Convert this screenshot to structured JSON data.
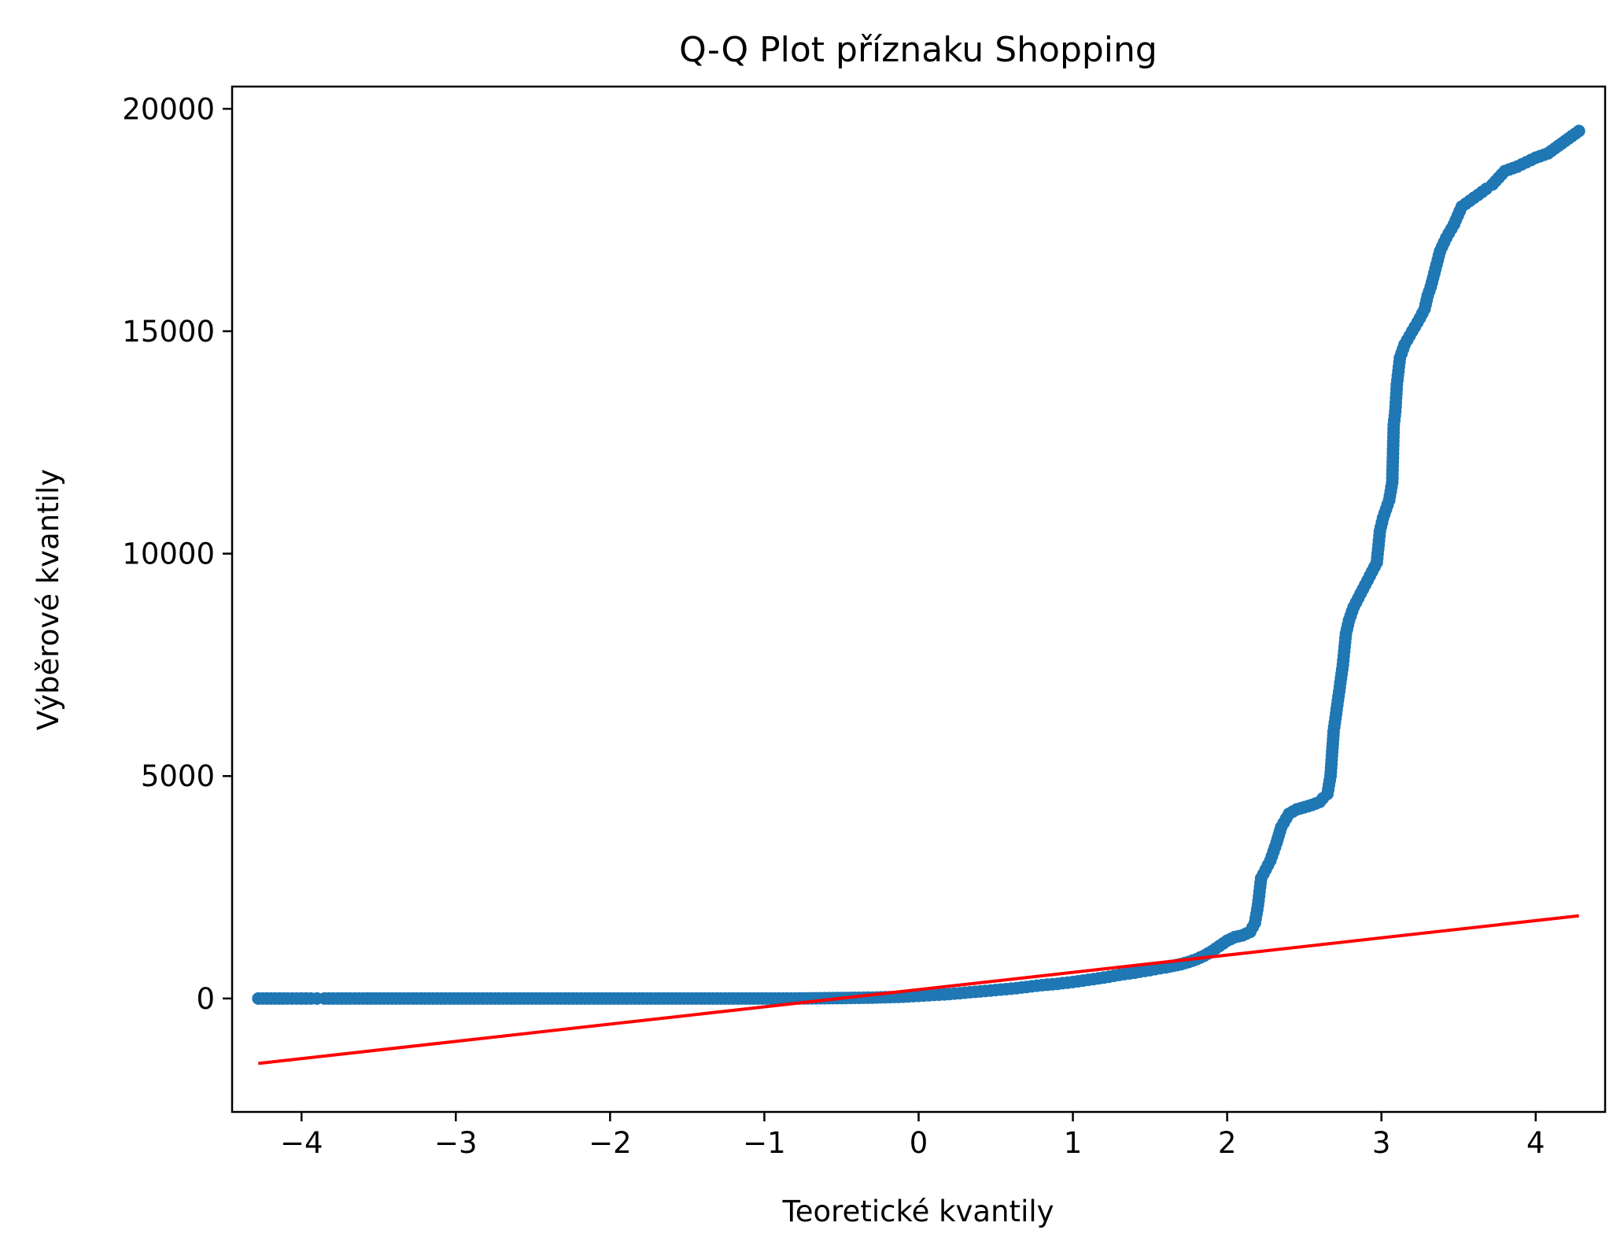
{
  "chart_data": {
    "type": "scatter",
    "title": "Q-Q Plot příznaku Shopping",
    "xlabel": "Teoretické kvantily",
    "ylabel": "Výběrové kvantily",
    "xlim": [
      -4.45,
      4.45
    ],
    "ylim": [
      -2550,
      20500
    ],
    "x_ticks": [
      -4,
      -3,
      -2,
      -1,
      0,
      1,
      2,
      3,
      4
    ],
    "x_tick_labels": [
      "−4",
      "−3",
      "−2",
      "−1",
      "0",
      "1",
      "2",
      "3",
      "4"
    ],
    "y_ticks": [
      0,
      5000,
      10000,
      15000,
      20000
    ],
    "y_tick_labels": [
      "0",
      "5000",
      "10000",
      "15000",
      "20000"
    ],
    "grid": false,
    "series": [
      {
        "kind": "points",
        "color": "#1f77b4",
        "x": [
          -4.28,
          -4.09,
          -4.0,
          -3.94,
          -3.9,
          -3.85,
          -3.6,
          -3.2,
          -2.8,
          -2.4,
          -2.0,
          -1.6,
          -1.2,
          -0.8,
          -0.5,
          -0.3,
          -0.1,
          0.0,
          0.1,
          0.2,
          0.3,
          0.4,
          0.5,
          0.6,
          0.7,
          0.8,
          0.9,
          1.0,
          1.1,
          1.2,
          1.3,
          1.4,
          1.5,
          1.6,
          1.7,
          1.75,
          1.8,
          1.85,
          1.9,
          1.95,
          2.0,
          2.05,
          2.1,
          2.15,
          2.18,
          2.2,
          2.22,
          2.25,
          2.28,
          2.3,
          2.32,
          2.35,
          2.4,
          2.45,
          2.5,
          2.55,
          2.6,
          2.62,
          2.65,
          2.67,
          2.69,
          2.71,
          2.73,
          2.75,
          2.77,
          2.79,
          2.82,
          2.85,
          2.88,
          2.91,
          2.94,
          2.97,
          2.99,
          3.01,
          3.03,
          3.05,
          3.06,
          3.07,
          3.08,
          3.09,
          3.1,
          3.12,
          3.15,
          3.2,
          3.25,
          3.28,
          3.3,
          3.32,
          3.35,
          3.38,
          3.42,
          3.47,
          3.52,
          3.6,
          3.68,
          3.72,
          3.8,
          3.88,
          3.94,
          4.0,
          4.08,
          4.28
        ],
        "y": [
          0,
          0,
          0,
          0,
          0,
          0,
          0,
          0,
          0,
          0,
          0,
          0,
          0,
          0,
          10,
          20,
          40,
          60,
          80,
          100,
          130,
          160,
          190,
          220,
          260,
          300,
          330,
          370,
          420,
          470,
          530,
          580,
          640,
          700,
          770,
          820,
          880,
          960,
          1060,
          1180,
          1300,
          1380,
          1420,
          1500,
          1700,
          2100,
          2700,
          2900,
          3100,
          3300,
          3500,
          3850,
          4150,
          4250,
          4300,
          4350,
          4420,
          4500,
          4600,
          5000,
          6000,
          6500,
          7000,
          7500,
          8200,
          8500,
          8800,
          9000,
          9200,
          9400,
          9600,
          9800,
          10500,
          10800,
          11000,
          11200,
          11400,
          11600,
          12900,
          13200,
          13800,
          14400,
          14700,
          15000,
          15300,
          15500,
          15800,
          16000,
          16400,
          16800,
          17100,
          17400,
          17800,
          18000,
          18200,
          18300,
          18600,
          18700,
          18800,
          18900,
          19000,
          19500
        ]
      },
      {
        "kind": "line",
        "color": "#ff0000",
        "x": [
          -4.28,
          4.28
        ],
        "y": [
          -1460,
          1860
        ]
      }
    ]
  }
}
